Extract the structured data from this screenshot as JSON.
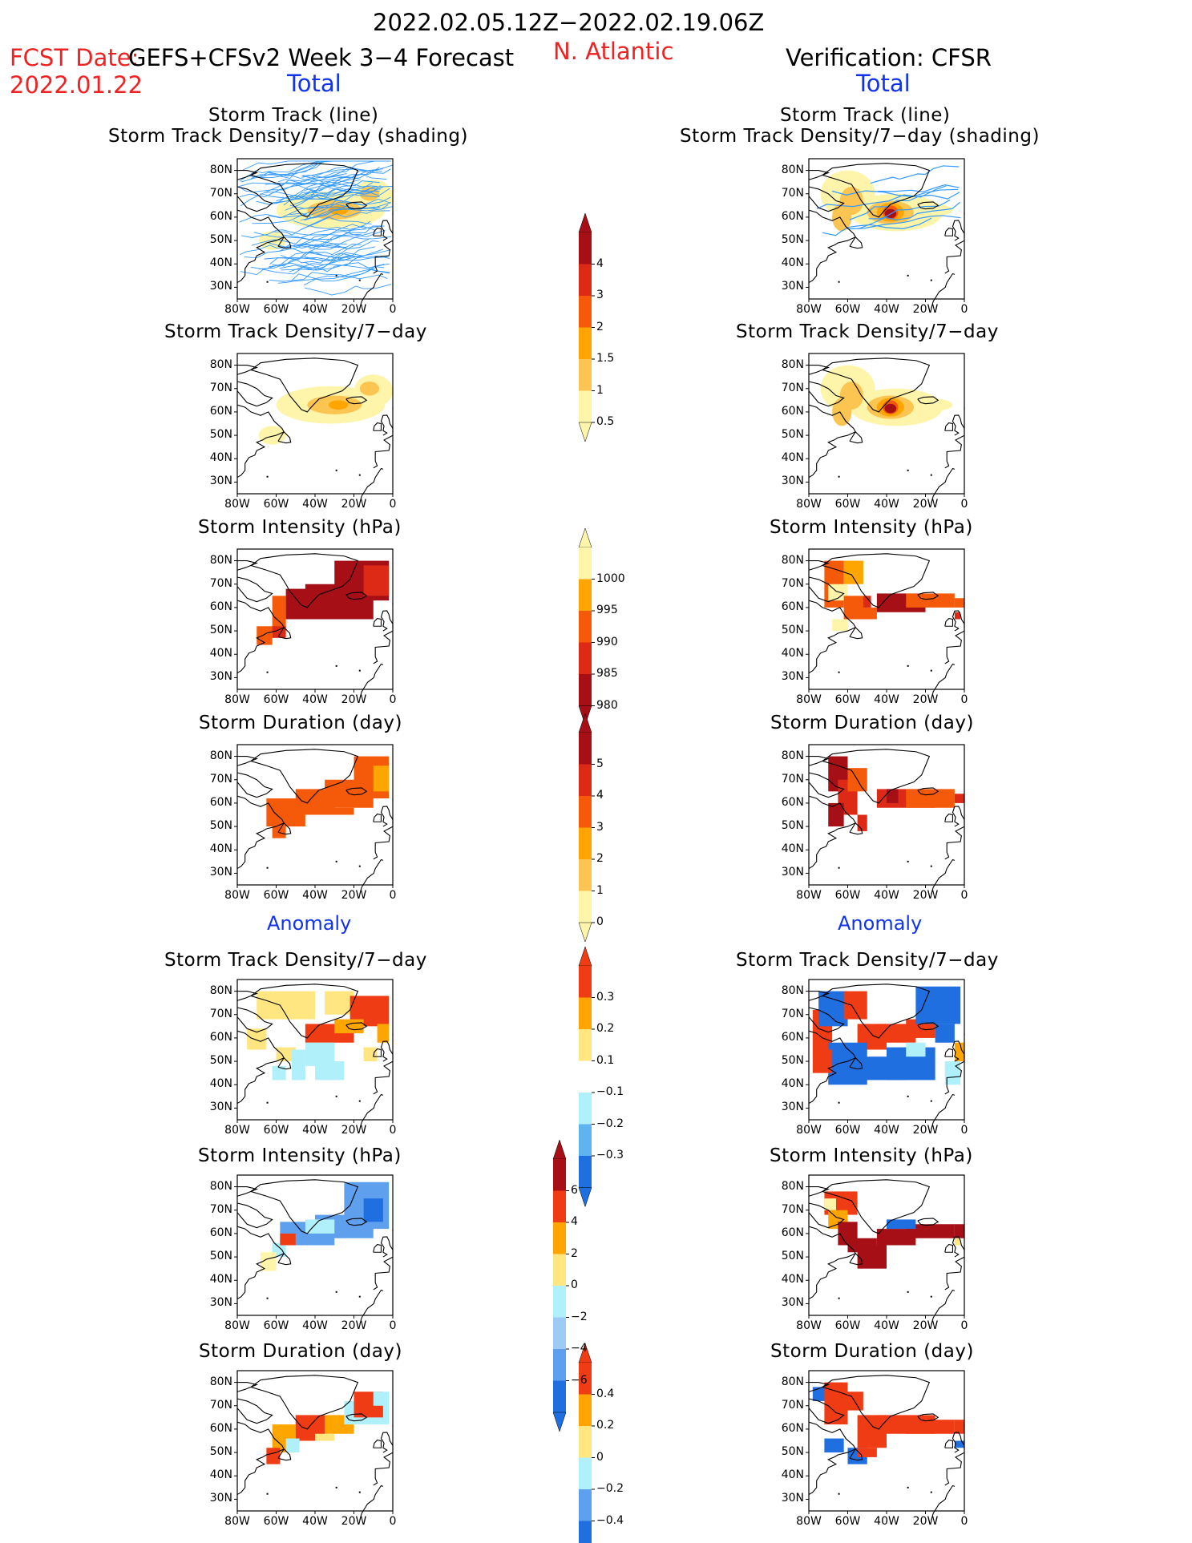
{
  "header": {
    "date_range": "2022.02.05.12Z−2022.02.19.06Z",
    "fcst_label": "FCST Date:",
    "fcst_model": "GEFS+CFSv2 Week 3−4 Forecast",
    "fcst_date": "2022.01.22",
    "region": "N. Atlantic",
    "verification": "Verification: CFSR",
    "left_total": "Total",
    "right_total": "Total",
    "left_anomaly": "Anomaly",
    "right_anomaly": "Anomaly"
  },
  "axes": {
    "lat_ticks": [
      "80N",
      "70N",
      "60N",
      "50N",
      "40N",
      "30N"
    ],
    "lon_ticks": [
      "80W",
      "60W",
      "40W",
      "20W",
      "0"
    ]
  },
  "panels": [
    {
      "title1": "Storm Track (line)",
      "title2": "Storm Track Density/7−day (shading)"
    },
    {
      "title1": "Storm Track Density/7−day"
    },
    {
      "title1": "Storm Intensity (hPa)"
    },
    {
      "title1": "Storm Duration (day)"
    },
    {
      "title1": "Storm Track Density/7−day"
    },
    {
      "title1": "Storm Intensity (hPa)"
    },
    {
      "title1": "Storm Duration (day)"
    }
  ],
  "colorbars": {
    "density_total": {
      "labels": [
        "4",
        "3",
        "2",
        "1.5",
        "1",
        "0.5"
      ],
      "colors": [
        "#a50f15",
        "#dd2a16",
        "#f55a0a",
        "#ffa500",
        "#fcc552",
        "#fff5aa"
      ]
    },
    "intensity_total": {
      "labels": [
        "1000",
        "995",
        "990",
        "985",
        "980"
      ],
      "colors": [
        "#fff5aa",
        "#ffa500",
        "#f55a0a",
        "#dd2a16",
        "#a50f15"
      ]
    },
    "duration_total": {
      "labels": [
        "5",
        "4",
        "3",
        "2",
        "1",
        "0"
      ],
      "colors": [
        "#a50f15",
        "#dd2a16",
        "#f55a0a",
        "#ffa500",
        "#fcc552",
        "#fff5aa"
      ]
    },
    "density_anom": {
      "labels": [
        "0.3",
        "0.2",
        "0.1",
        "−0.1",
        "−0.2",
        "−0.3"
      ],
      "colors": [
        "#f03c14",
        "#ffa500",
        "#ffe680",
        "#ffffff",
        "#b0f0fa",
        "#5fb4f0",
        "#1f6fe0"
      ]
    },
    "intensity_anom": {
      "labels": [
        "6",
        "4",
        "2",
        "0",
        "−2",
        "−4",
        "−6"
      ],
      "colors": [
        "#a50f15",
        "#f03c14",
        "#ffa500",
        "#ffe680",
        "#b0f0fa",
        "#9dcbf5",
        "#5fa0ee",
        "#1f6fe0"
      ]
    },
    "duration_anom": {
      "labels": [
        "0.4",
        "0.2",
        "0",
        "−0.2",
        "−0.4"
      ],
      "colors": [
        "#f03c14",
        "#ffa500",
        "#ffe680",
        "#b0f0fa",
        "#5fa0ee",
        "#1f6fe0"
      ]
    }
  }
}
